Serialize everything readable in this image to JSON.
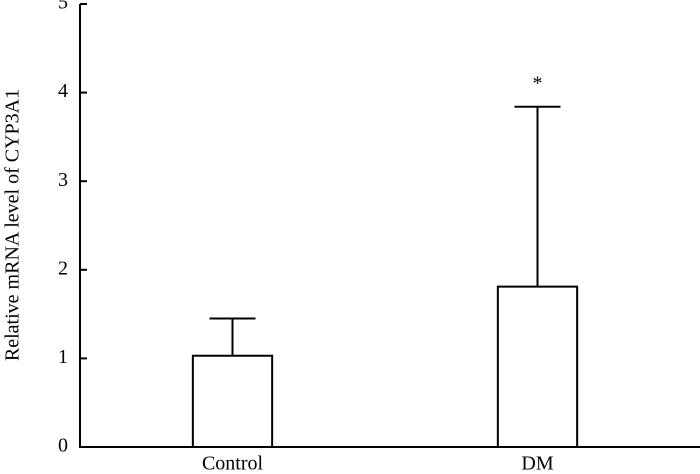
{
  "chart_data": {
    "type": "bar",
    "y_label": "Relative mRNA level of CYP3A1",
    "categories": [
      "Control",
      "DM"
    ],
    "values": [
      1.03,
      1.81
    ],
    "errors": [
      0.42,
      2.03
    ],
    "color": "#ffffff",
    "ylim": [
      0,
      5
    ],
    "yticks": [
      0,
      1,
      2,
      3,
      4,
      5
    ],
    "annotations": [
      {
        "category": "DM",
        "text": "*"
      }
    ]
  }
}
